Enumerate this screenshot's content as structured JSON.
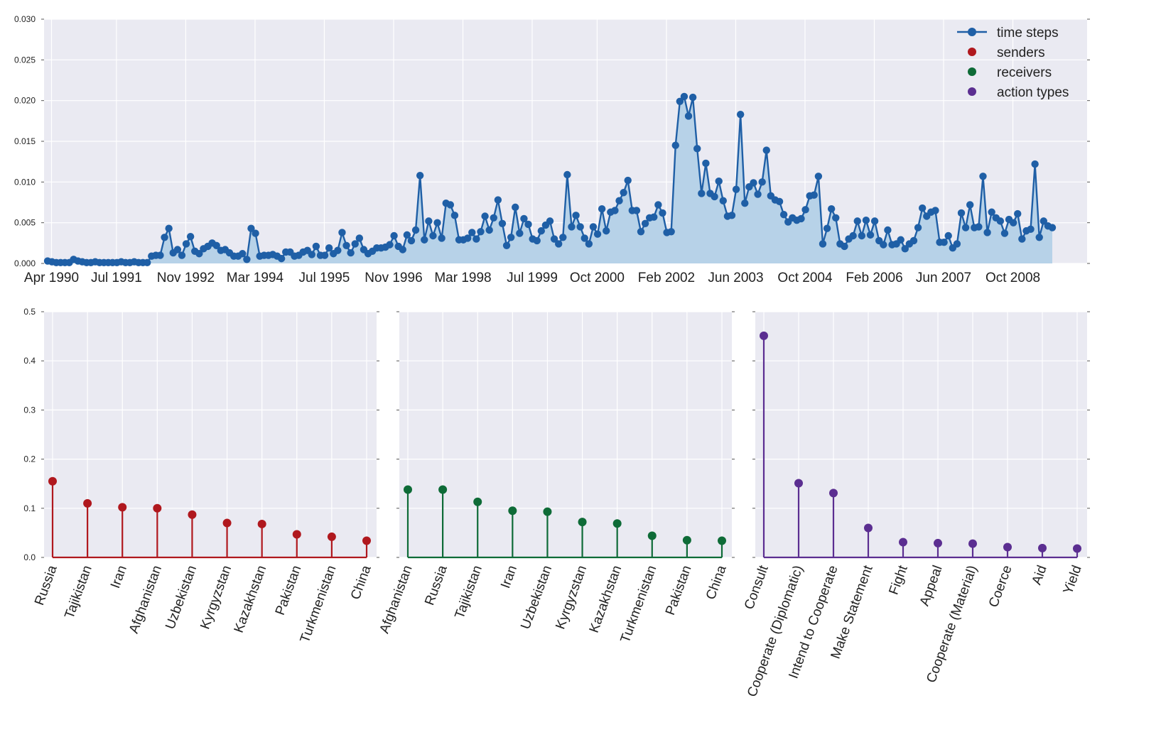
{
  "colors": {
    "plot_bg": "#EAEAF2",
    "grid": "#FFFFFF",
    "time_steps": "#1F5FA6",
    "time_fill": "#B7D2E8",
    "senders": "#B0181E",
    "receivers": "#0E6B37",
    "action_types": "#5B2E91"
  },
  "legend": {
    "items": [
      {
        "label": "time steps",
        "color_key": "time_steps",
        "style": "line-marker"
      },
      {
        "label": "senders",
        "color_key": "senders",
        "style": "marker"
      },
      {
        "label": "receivers",
        "color_key": "receivers",
        "style": "marker"
      },
      {
        "label": "action types",
        "color_key": "action_types",
        "style": "marker"
      }
    ],
    "placement": "top-right"
  },
  "chart_data": [
    {
      "type": "area",
      "title": "",
      "xlabel": "",
      "ylabel": "",
      "ylim": [
        0,
        0.03
      ],
      "yticks": [
        "0.000",
        "0.005",
        "0.010",
        "0.015",
        "0.020",
        "0.025",
        "0.030"
      ],
      "xticks": [
        "Apr 1990",
        "Jul 1991",
        "Nov 1992",
        "Mar 1994",
        "Jul 1995",
        "Nov 1996",
        "Mar 1998",
        "Jul 1999",
        "Oct 2000",
        "Feb 2002",
        "Jun 2003",
        "Oct 2004",
        "Feb 2006",
        "Jun 2007",
        "Oct 2008"
      ],
      "x_start": "Apr 1990",
      "x_interval": "month",
      "series": [
        {
          "name": "time steps",
          "values": [
            0.0003,
            0.0002,
            0.0001,
            0.0001,
            0.0001,
            0.0001,
            0.0005,
            0.0003,
            0.0002,
            0.0001,
            0.0001,
            0.0002,
            0.0001,
            0.0001,
            0.0001,
            0.0001,
            0.0001,
            0.0002,
            0.0001,
            0.0001,
            0.0002,
            0.0001,
            0.0001,
            0.0001,
            0.0009,
            0.001,
            0.001,
            0.0032,
            0.0043,
            0.0013,
            0.0017,
            0.001,
            0.0024,
            0.0033,
            0.0015,
            0.0012,
            0.0018,
            0.0021,
            0.0025,
            0.0022,
            0.0016,
            0.0017,
            0.0013,
            0.0009,
            0.0009,
            0.0012,
            0.0005,
            0.0043,
            0.0037,
            0.0009,
            0.001,
            0.001,
            0.0011,
            0.0009,
            0.0006,
            0.0014,
            0.0014,
            0.0009,
            0.001,
            0.0014,
            0.0016,
            0.0011,
            0.0021,
            0.001,
            0.001,
            0.0019,
            0.0012,
            0.0016,
            0.0038,
            0.0022,
            0.0013,
            0.0024,
            0.0031,
            0.0017,
            0.0012,
            0.0015,
            0.0019,
            0.0019,
            0.002,
            0.0023,
            0.0034,
            0.0021,
            0.0017,
            0.0035,
            0.0028,
            0.0041,
            0.0108,
            0.0029,
            0.0052,
            0.0034,
            0.005,
            0.0031,
            0.0074,
            0.0072,
            0.0059,
            0.0029,
            0.0029,
            0.0031,
            0.0038,
            0.003,
            0.0039,
            0.0058,
            0.0041,
            0.0056,
            0.0078,
            0.0049,
            0.0022,
            0.0032,
            0.0069,
            0.0037,
            0.0055,
            0.0048,
            0.003,
            0.0028,
            0.004,
            0.0047,
            0.0052,
            0.003,
            0.0024,
            0.0032,
            0.0109,
            0.0045,
            0.0059,
            0.0045,
            0.0031,
            0.0024,
            0.0045,
            0.0036,
            0.0067,
            0.004,
            0.0063,
            0.0065,
            0.0077,
            0.0087,
            0.0102,
            0.0065,
            0.0065,
            0.0039,
            0.0049,
            0.0056,
            0.0057,
            0.0072,
            0.0062,
            0.0038,
            0.0039,
            0.0145,
            0.0199,
            0.0205,
            0.0181,
            0.0204,
            0.0141,
            0.0086,
            0.0123,
            0.0086,
            0.0082,
            0.0101,
            0.0077,
            0.0058,
            0.0059,
            0.0091,
            0.0183,
            0.0074,
            0.0094,
            0.0099,
            0.0085,
            0.01,
            0.0139,
            0.0083,
            0.0078,
            0.0076,
            0.006,
            0.0051,
            0.0056,
            0.0053,
            0.0055,
            0.0066,
            0.0083,
            0.0084,
            0.0107,
            0.0024,
            0.0043,
            0.0067,
            0.0056,
            0.0024,
            0.0021,
            0.003,
            0.0034,
            0.0052,
            0.0034,
            0.0053,
            0.0035,
            0.0052,
            0.0028,
            0.0023,
            0.0041,
            0.0023,
            0.0024,
            0.0029,
            0.0018,
            0.0024,
            0.0028,
            0.0044,
            0.0068,
            0.0058,
            0.0063,
            0.0065,
            0.0026,
            0.0026,
            0.0034,
            0.0019,
            0.0024,
            0.0062,
            0.0044,
            0.0072,
            0.0044,
            0.0045,
            0.0107,
            0.0038,
            0.0063,
            0.0056,
            0.0052,
            0.0037,
            0.0054,
            0.005,
            0.0061,
            0.003,
            0.004,
            0.0042,
            0.0122,
            0.0032,
            0.0052,
            0.0046,
            0.0044
          ]
        }
      ]
    },
    {
      "type": "stem",
      "title": "",
      "ylim": [
        0,
        0.5
      ],
      "yticks": [
        "0.0",
        "0.1",
        "0.2",
        "0.3",
        "0.4",
        "0.5"
      ],
      "categories": [
        "Russia",
        "Tajikistan",
        "Iran",
        "Afghanistan",
        "Uzbekistan",
        "Kyrgyzstan",
        "Kazakhstan",
        "Pakistan",
        "Turkmenistan",
        "China"
      ],
      "series": [
        {
          "name": "senders",
          "values": [
            0.155,
            0.11,
            0.102,
            0.1,
            0.087,
            0.07,
            0.068,
            0.047,
            0.042,
            0.034
          ]
        }
      ]
    },
    {
      "type": "stem",
      "title": "",
      "ylim": [
        0,
        0.5
      ],
      "categories": [
        "Afghanistan",
        "Russia",
        "Tajikistan",
        "Iran",
        "Uzbekistan",
        "Kyrgyzstan",
        "Kazakhstan",
        "Turkmenistan",
        "Pakistan",
        "China"
      ],
      "series": [
        {
          "name": "receivers",
          "values": [
            0.138,
            0.138,
            0.113,
            0.095,
            0.093,
            0.072,
            0.069,
            0.044,
            0.035,
            0.034
          ]
        }
      ]
    },
    {
      "type": "stem",
      "title": "",
      "ylim": [
        0,
        0.5
      ],
      "categories": [
        "Consult",
        "Cooperate (Diplomatic)",
        "Intend to Cooperate",
        "Make Statement",
        "Fight",
        "Appeal",
        "Cooperate (Material)",
        "Coerce",
        "Aid",
        "Yield"
      ],
      "series": [
        {
          "name": "action types",
          "values": [
            0.451,
            0.151,
            0.131,
            0.06,
            0.031,
            0.029,
            0.028,
            0.021,
            0.019,
            0.018
          ]
        }
      ]
    }
  ]
}
